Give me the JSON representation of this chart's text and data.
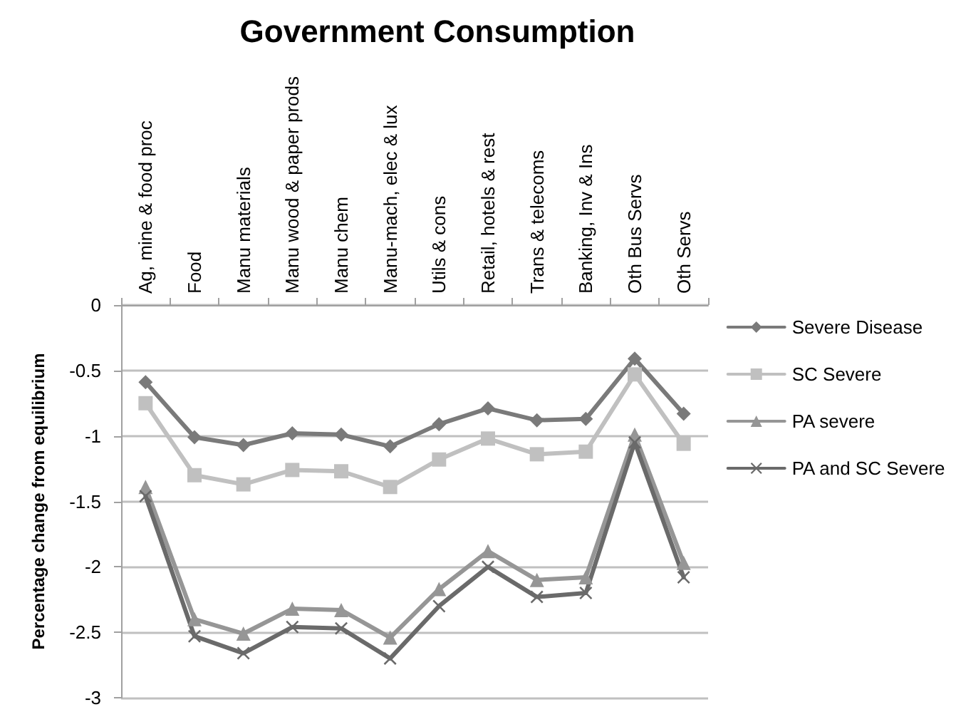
{
  "chart_data": {
    "type": "line",
    "title": "Government Consumption",
    "ylabel": "Percentage change from equilibrium",
    "categories": [
      "Ag, mine & food proc",
      "Food",
      "Manu materials",
      "Manu wood & paper prods",
      "Manu chem",
      "Manu-mach, elec & lux",
      "Utils & cons",
      "Retail, hotels & rest",
      "Trans & telecoms",
      "Banking, Inv & Ins",
      "Oth Bus Servs",
      "Oth Servs"
    ],
    "series": [
      {
        "name": "Severe Disease",
        "color": "#7a7a7a",
        "marker": "diamond",
        "values": [
          -0.59,
          -1.01,
          -1.07,
          -0.98,
          -0.99,
          -1.08,
          -0.91,
          -0.79,
          -0.88,
          -0.87,
          -0.41,
          -0.83
        ]
      },
      {
        "name": "SC Severe",
        "color": "#c0c0c0",
        "marker": "square",
        "values": [
          -0.75,
          -1.3,
          -1.37,
          -1.26,
          -1.27,
          -1.39,
          -1.18,
          -1.02,
          -1.14,
          -1.12,
          -0.53,
          -1.06
        ]
      },
      {
        "name": "PA severe",
        "color": "#969696",
        "marker": "triangle",
        "values": [
          -1.39,
          -2.4,
          -2.51,
          -2.32,
          -2.33,
          -2.54,
          -2.17,
          -1.88,
          -2.1,
          -2.08,
          -0.99,
          -1.97
        ]
      },
      {
        "name": "PA and SC Severe",
        "color": "#6a6a6a",
        "marker": "cross",
        "values": [
          -1.46,
          -2.53,
          -2.66,
          -2.46,
          -2.47,
          -2.7,
          -2.3,
          -2.0,
          -2.23,
          -2.2,
          -1.05,
          -2.08
        ]
      }
    ],
    "ylim": [
      -3,
      0
    ],
    "yticks": [
      0,
      -0.5,
      -1,
      -1.5,
      -2,
      -2.5,
      -3
    ],
    "grid": "y",
    "legend": "right",
    "line_style": "solid"
  }
}
